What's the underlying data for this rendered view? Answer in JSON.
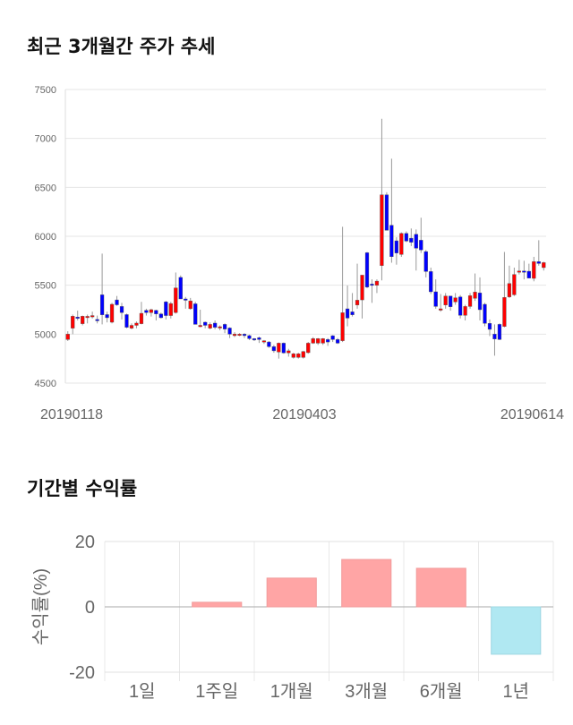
{
  "titles": {
    "price_trend": "최근 3개월간 주가 추세",
    "period_return": "기간별 수익률"
  },
  "colors": {
    "up": "#ff0000",
    "down": "#0000ff",
    "positive_bar": "#ffa5a5",
    "negative_bar": "#b0e8f2"
  },
  "chart_data": [
    {
      "type": "candlestick",
      "title": "최근 3개월간 주가 추세",
      "ylim": [
        4500,
        7500
      ],
      "yticks": [
        4500,
        5000,
        5500,
        6000,
        6500,
        7000,
        7500
      ],
      "xtick_labels": [
        "20190118",
        "20190403",
        "20190614"
      ],
      "grid": true,
      "ohlc_note": "[open, high, low, close]",
      "ohlc": [
        [
          4945,
          5030,
          4930,
          5000
        ],
        [
          5061,
          5200,
          5000,
          5183
        ],
        [
          5175,
          5240,
          5140,
          5165
        ],
        [
          5107,
          5190,
          5090,
          5183
        ],
        [
          5180,
          5200,
          5110,
          5182
        ],
        [
          5185,
          5230,
          5160,
          5190
        ],
        [
          5150,
          5190,
          5110,
          5137
        ],
        [
          5402,
          5823,
          5100,
          5198
        ],
        [
          5200,
          5230,
          5120,
          5168
        ],
        [
          5122,
          5320,
          5110,
          5305
        ],
        [
          5350,
          5390,
          5290,
          5300
        ],
        [
          5283,
          5320,
          5150,
          5220
        ],
        [
          5200,
          5210,
          5060,
          5070
        ],
        [
          5061,
          5110,
          5050,
          5090
        ],
        [
          5090,
          5130,
          5060,
          5113
        ],
        [
          5107,
          5330,
          5100,
          5213
        ],
        [
          5243,
          5260,
          5190,
          5220
        ],
        [
          5220,
          5260,
          5180,
          5250
        ],
        [
          5243,
          5250,
          5140,
          5207
        ],
        [
          5207,
          5220,
          5160,
          5168
        ],
        [
          5330,
          5340,
          5150,
          5190
        ],
        [
          5190,
          5330,
          5160,
          5313
        ],
        [
          5220,
          5630,
          5210,
          5473
        ],
        [
          5580,
          5600,
          5360,
          5360
        ],
        [
          5360,
          5380,
          5260,
          5348
        ],
        [
          5260,
          5370,
          5250,
          5340
        ],
        [
          5310,
          5330,
          5100,
          5100
        ],
        [
          5080,
          5250,
          5070,
          5090
        ],
        [
          5122,
          5130,
          5060,
          5090
        ],
        [
          5061,
          5120,
          5050,
          5100
        ],
        [
          5113,
          5140,
          5050,
          5070
        ],
        [
          5076,
          5090,
          5040,
          5076
        ],
        [
          5100,
          5110,
          5010,
          5052
        ],
        [
          5063,
          5070,
          4960,
          5000
        ],
        [
          4985,
          5020,
          4970,
          5000
        ],
        [
          5000,
          5010,
          4980,
          5000
        ],
        [
          5000,
          5010,
          4960,
          4985
        ],
        [
          4985,
          4995,
          4940,
          4954
        ],
        [
          4954,
          4960,
          4930,
          4945
        ],
        [
          4963,
          4975,
          4910,
          4945
        ],
        [
          4920,
          4940,
          4900,
          4933
        ],
        [
          4920,
          4930,
          4860,
          4872
        ],
        [
          4872,
          4890,
          4810,
          4830
        ],
        [
          4817,
          4915,
          4750,
          4908
        ],
        [
          4908,
          4915,
          4800,
          4808
        ],
        [
          4808,
          4850,
          4770,
          4830
        ],
        [
          4762,
          4810,
          4750,
          4799
        ],
        [
          4762,
          4810,
          4750,
          4799
        ],
        [
          4762,
          4830,
          4750,
          4823
        ],
        [
          4811,
          4920,
          4800,
          4908
        ],
        [
          4908,
          4970,
          4900,
          4954
        ],
        [
          4908,
          4960,
          4890,
          4954
        ],
        [
          4908,
          4960,
          4890,
          4954
        ],
        [
          4945,
          4960,
          4880,
          4920
        ],
        [
          4984,
          4990,
          4920,
          4945
        ],
        [
          4945,
          4960,
          4900,
          4908
        ],
        [
          4933,
          6097,
          4920,
          5219
        ],
        [
          5259,
          5497,
          5080,
          5164
        ],
        [
          5228,
          5420,
          5180,
          5198
        ],
        [
          5298,
          5720,
          5260,
          5347
        ],
        [
          5350,
          5600,
          5160,
          5603
        ],
        [
          5832,
          5840,
          5470,
          5481
        ],
        [
          5512,
          5560,
          5320,
          5500
        ],
        [
          5500,
          5560,
          5420,
          5542
        ],
        [
          5701,
          7201,
          5550,
          6424
        ],
        [
          6424,
          6450,
          6061,
          6061
        ],
        [
          6113,
          6793,
          5730,
          5792
        ],
        [
          5954,
          5990,
          5710,
          5829
        ],
        [
          5814,
          6040,
          5790,
          6030
        ],
        [
          6030,
          6050,
          5940,
          5951
        ],
        [
          5981,
          6080,
          5900,
          5939
        ],
        [
          6021,
          6070,
          5650,
          5878
        ],
        [
          5960,
          6190,
          5830,
          5860
        ],
        [
          5844,
          5860,
          5580,
          5640
        ],
        [
          5640,
          5680,
          5410,
          5433
        ],
        [
          5433,
          5560,
          5260,
          5283
        ],
        [
          5259,
          5410,
          5230,
          5259
        ],
        [
          5298,
          5420,
          5260,
          5390
        ],
        [
          5390,
          5390,
          5240,
          5280
        ],
        [
          5329,
          5420,
          5300,
          5372
        ],
        [
          5381,
          5400,
          5160,
          5192
        ],
        [
          5192,
          5300,
          5140,
          5283
        ],
        [
          5283,
          5420,
          5260,
          5393
        ],
        [
          5366,
          5620,
          5340,
          5430
        ],
        [
          5421,
          5580,
          5140,
          5250
        ],
        [
          5305,
          5320,
          5080,
          5110
        ],
        [
          5110,
          5150,
          4980,
          5049
        ],
        [
          5000,
          5100,
          4780,
          4951
        ],
        [
          5100,
          5110,
          4940,
          4945
        ],
        [
          5079,
          5840,
          5070,
          5375
        ],
        [
          5381,
          5700,
          5370,
          5518
        ],
        [
          5402,
          5680,
          5390,
          5610
        ],
        [
          5640,
          5760,
          5610,
          5646
        ],
        [
          5646,
          5750,
          5560,
          5643
        ],
        [
          5643,
          5720,
          5570,
          5573
        ],
        [
          5570,
          5790,
          5540,
          5741
        ],
        [
          5741,
          5960,
          5700,
          5722
        ],
        [
          5680,
          5740,
          5650,
          5731
        ]
      ]
    },
    {
      "type": "bar",
      "title": "기간별 수익률",
      "categories": [
        "1일",
        "1주일",
        "1개월",
        "3개월",
        "6개월",
        "1년"
      ],
      "values": [
        0,
        1.4,
        8.8,
        14.5,
        11.8,
        -14.5
      ],
      "ylabel": "수익률(%)",
      "ylim": [
        -20,
        20
      ],
      "yticks": [
        -20,
        0,
        20
      ],
      "grid": true
    }
  ]
}
